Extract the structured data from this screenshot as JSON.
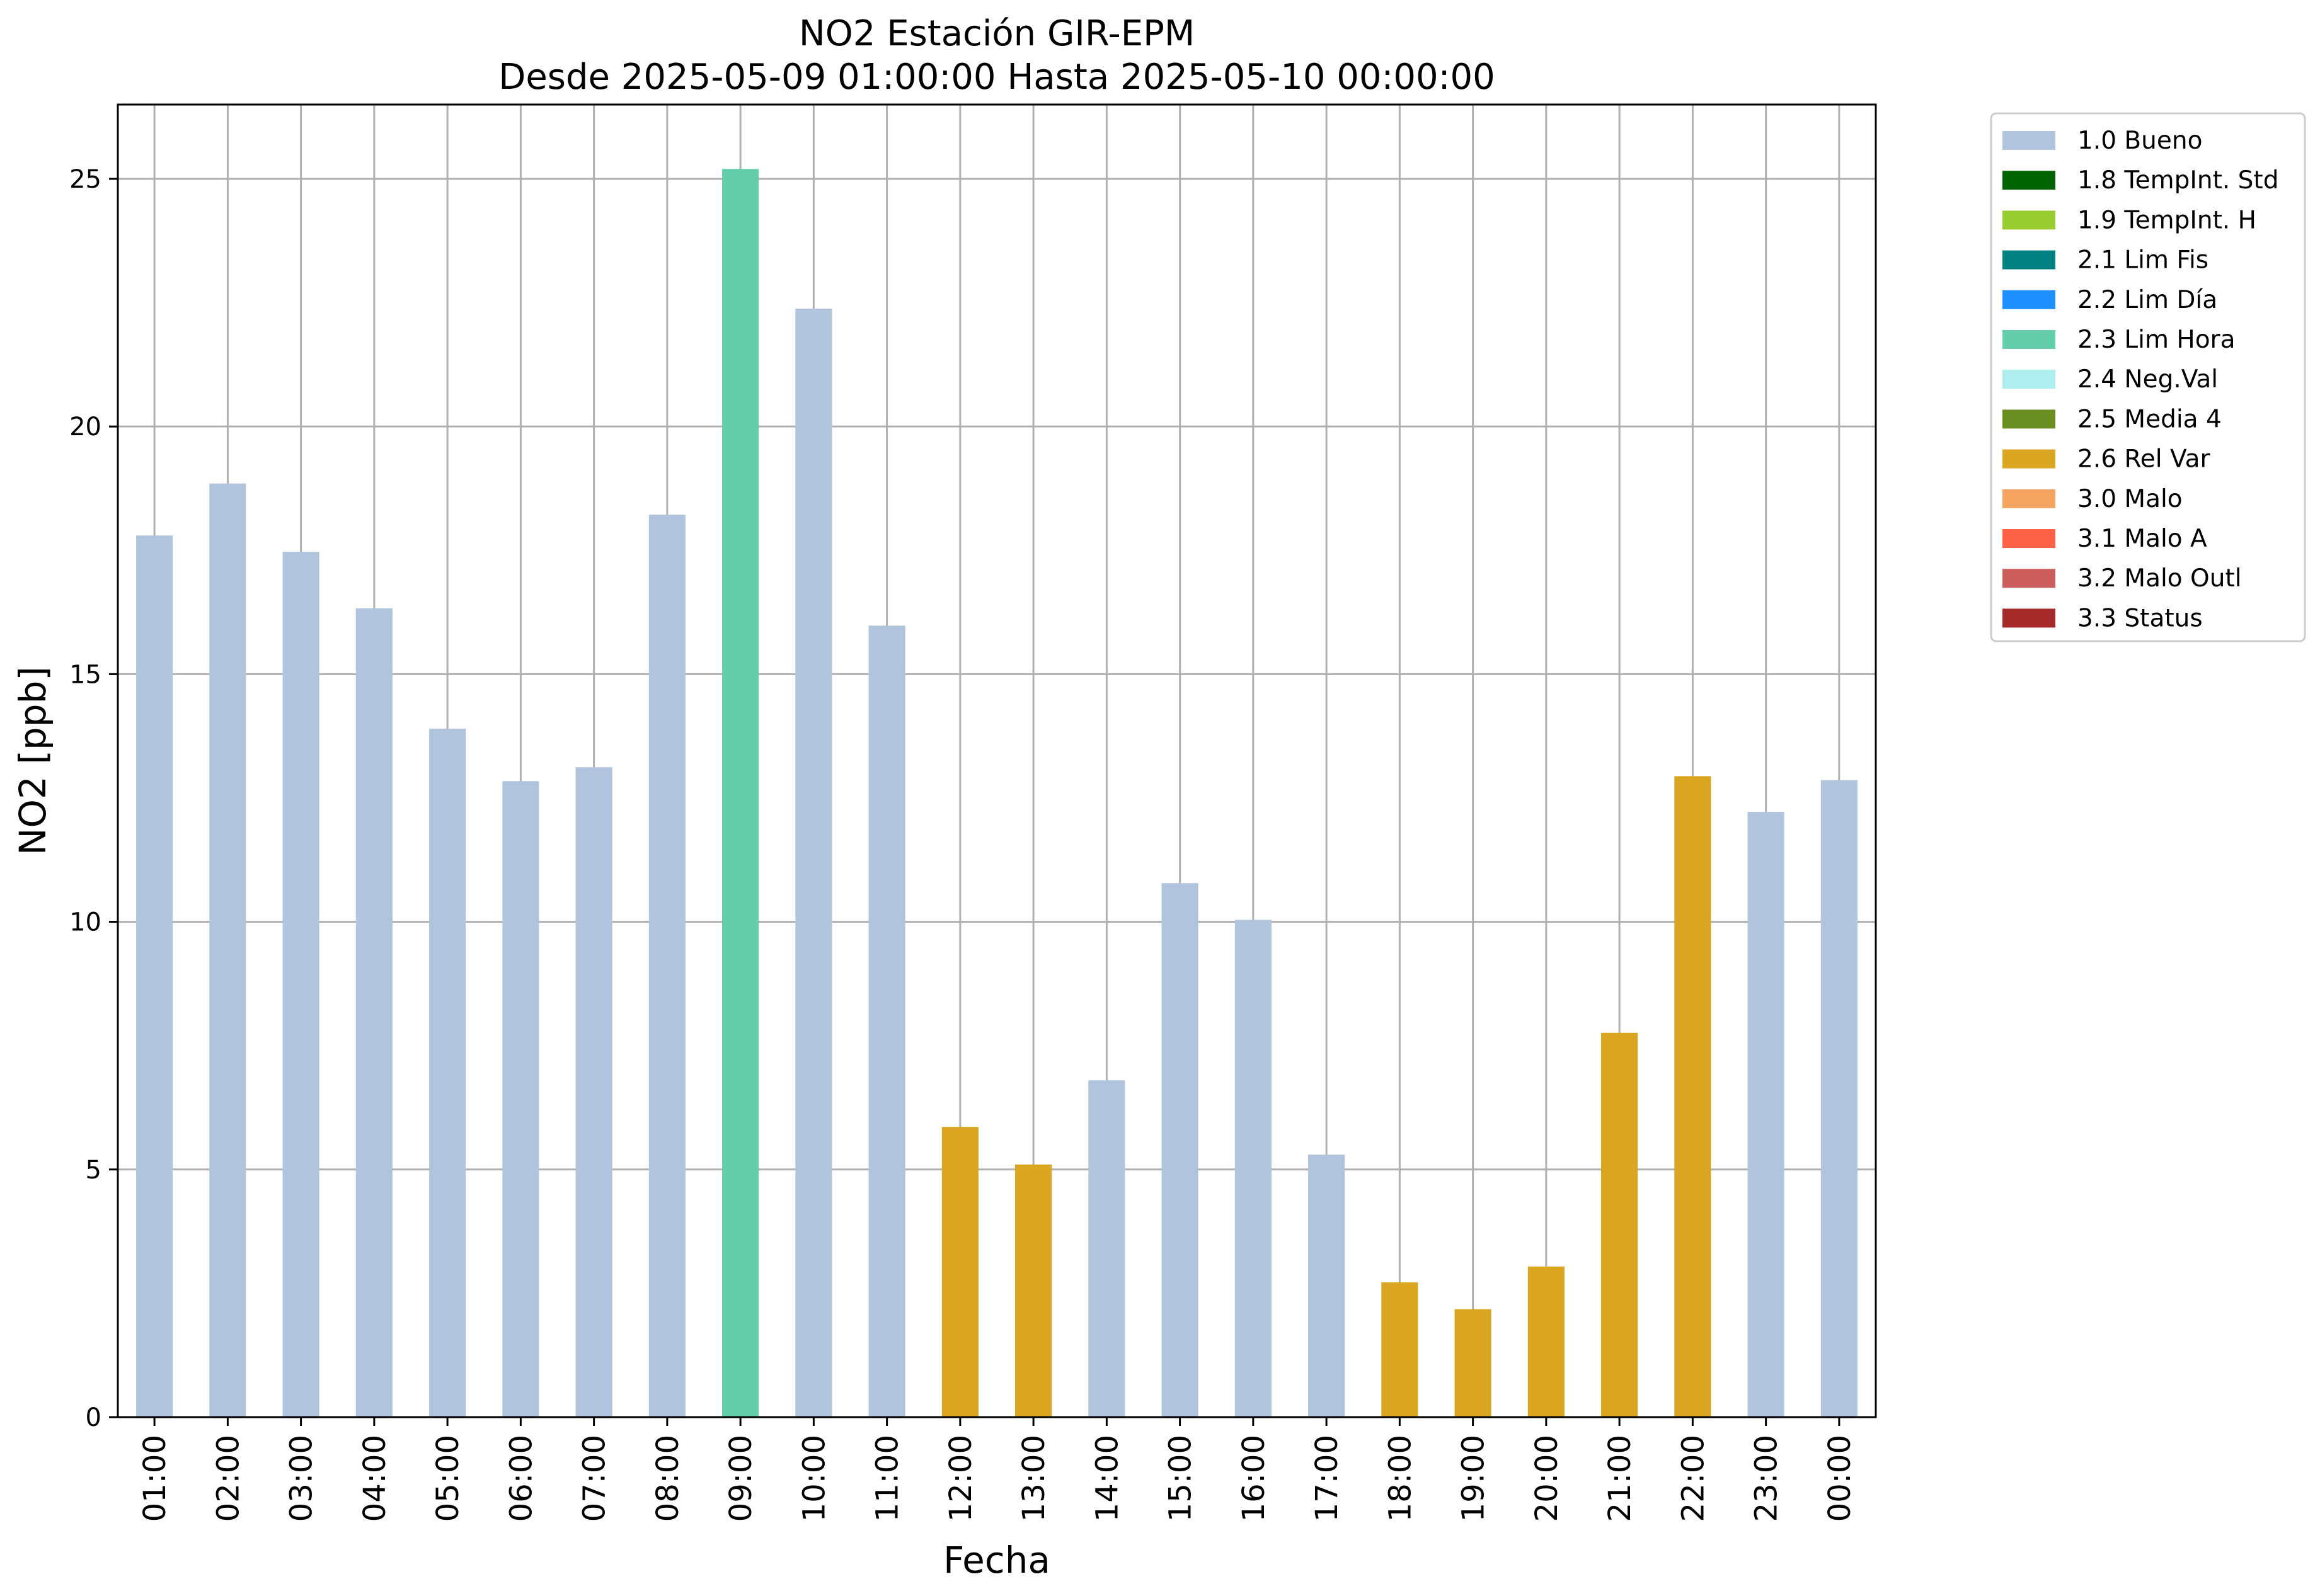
{
  "chart_data": {
    "type": "bar",
    "title_line1": "NO2 Estación GIR-EPM",
    "title_line2": "Desde 2025-05-09 01:00:00 Hasta 2025-05-10 00:00:00",
    "xlabel": "Fecha",
    "ylabel": "NO2 [ppb]",
    "ylim": [
      0,
      26.5
    ],
    "yticks": [
      0,
      5,
      10,
      15,
      20,
      25
    ],
    "grid": true,
    "legend_position": "outside-top-right",
    "categories": [
      "01:00",
      "02:00",
      "03:00",
      "04:00",
      "05:00",
      "06:00",
      "07:00",
      "08:00",
      "09:00",
      "10:00",
      "11:00",
      "12:00",
      "13:00",
      "14:00",
      "15:00",
      "16:00",
      "17:00",
      "18:00",
      "19:00",
      "20:00",
      "21:00",
      "22:00",
      "23:00",
      "00:00"
    ],
    "values": [
      17.8,
      18.85,
      17.47,
      16.33,
      13.9,
      12.84,
      13.12,
      18.22,
      25.2,
      22.38,
      15.98,
      5.86,
      5.1,
      6.8,
      10.78,
      10.04,
      5.3,
      2.72,
      2.18,
      3.04,
      7.76,
      12.94,
      12.22,
      12.86
    ],
    "flags": [
      "1.0 Bueno",
      "1.0 Bueno",
      "1.0 Bueno",
      "1.0 Bueno",
      "1.0 Bueno",
      "1.0 Bueno",
      "1.0 Bueno",
      "1.0 Bueno",
      "2.3 Lim Hora",
      "1.0 Bueno",
      "1.0 Bueno",
      "2.6 Rel Var",
      "2.6 Rel Var",
      "1.0 Bueno",
      "1.0 Bueno",
      "1.0 Bueno",
      "1.0 Bueno",
      "2.6 Rel Var",
      "2.6 Rel Var",
      "2.6 Rel Var",
      "2.6 Rel Var",
      "2.6 Rel Var",
      "1.0 Bueno",
      "1.0 Bueno"
    ],
    "legend": [
      {
        "label": "1.0 Bueno",
        "color": "#B0C4DE"
      },
      {
        "label": "1.8 TempInt. Std",
        "color": "#006400"
      },
      {
        "label": "1.9 TempInt. H",
        "color": "#9ACD32"
      },
      {
        "label": "2.1 Lim Fis",
        "color": "#008080"
      },
      {
        "label": "2.2 Lim Día",
        "color": "#1E90FF"
      },
      {
        "label": "2.3 Lim Hora",
        "color": "#66CDAA"
      },
      {
        "label": "2.4 Neg.Val",
        "color": "#AFEEEE"
      },
      {
        "label": "2.5 Media 4",
        "color": "#6B8E23"
      },
      {
        "label": "2.6 Rel Var",
        "color": "#DAA520"
      },
      {
        "label": "3.0 Malo",
        "color": "#F4A460"
      },
      {
        "label": "3.1 Malo A",
        "color": "#FF6347"
      },
      {
        "label": "3.2 Malo Outl",
        "color": "#CD5C5C"
      },
      {
        "label": "3.3 Status",
        "color": "#A52A2A"
      }
    ]
  }
}
